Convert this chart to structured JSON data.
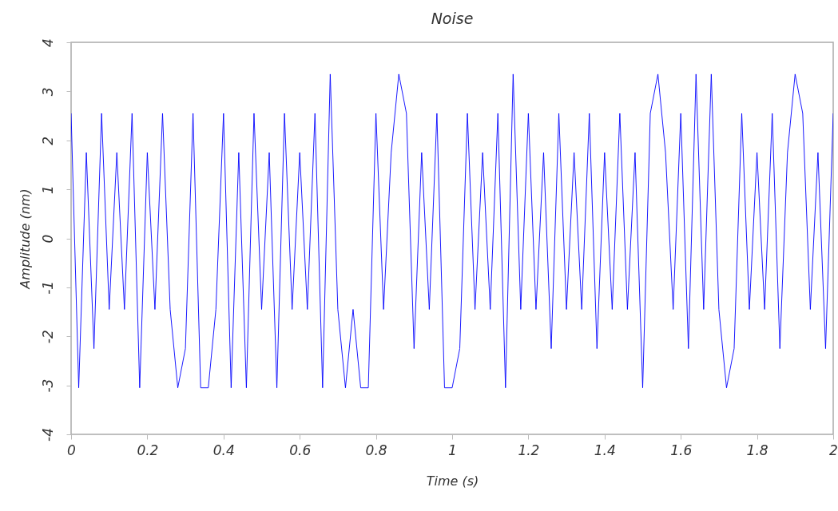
{
  "chart_data": {
    "type": "line",
    "title": "Noise",
    "xlabel": "Time (s)",
    "ylabel": "Amplitude (nm)",
    "x": [
      0,
      0.02,
      0.04,
      0.06,
      0.08,
      0.1,
      0.12,
      0.14,
      0.16,
      0.18,
      0.2,
      0.22,
      0.24,
      0.26,
      0.28,
      0.3,
      0.32,
      0.34,
      0.36,
      0.38,
      0.4,
      0.42,
      0.44,
      0.46,
      0.48,
      0.5,
      0.52,
      0.54,
      0.56,
      0.58,
      0.6,
      0.62,
      0.64,
      0.66,
      0.68,
      0.7,
      0.72,
      0.74,
      0.76,
      0.78,
      0.8,
      0.82,
      0.84,
      0.86,
      0.88,
      0.9,
      0.92,
      0.94,
      0.96,
      0.98,
      1,
      1.02,
      1.04,
      1.06,
      1.08,
      1.1,
      1.12,
      1.14,
      1.16,
      1.18,
      1.2,
      1.22,
      1.24,
      1.26,
      1.28,
      1.3,
      1.32,
      1.34,
      1.36,
      1.38,
      1.4,
      1.42,
      1.44,
      1.46,
      1.48,
      1.5,
      1.52,
      1.54,
      1.56,
      1.58,
      1.6,
      1.62,
      1.64,
      1.66,
      1.68,
      1.7,
      1.72,
      1.74,
      1.76,
      1.78,
      1.8,
      1.82,
      1.84,
      1.86,
      1.88,
      1.9,
      1.92,
      1.94,
      1.96,
      1.98,
      2
    ],
    "series": [
      {
        "color": "#0000ff",
        "values": [
          2.55,
          -3.05,
          1.75,
          -2.25,
          2.55,
          -1.45,
          1.75,
          -1.45,
          2.55,
          -3.05,
          1.75,
          -1.45,
          2.55,
          -1.45,
          -3.05,
          -2.25,
          2.55,
          -3.05,
          -3.05,
          -1.45,
          2.55,
          -3.05,
          1.75,
          -3.05,
          2.55,
          -1.45,
          1.75,
          -3.05,
          2.55,
          -1.45,
          1.75,
          -1.45,
          2.55,
          -3.05,
          3.35,
          -1.45,
          -3.05,
          -1.45,
          -3.05,
          -3.05,
          2.55,
          -1.45,
          1.75,
          3.35,
          2.55,
          -2.25,
          1.75,
          -1.45,
          2.55,
          -3.05,
          -3.05,
          -2.25,
          2.55,
          -1.45,
          1.75,
          -1.45,
          2.55,
          -3.05,
          3.35,
          -1.45,
          2.55,
          -1.45,
          1.75,
          -2.25,
          2.55,
          -1.45,
          1.75,
          -1.45,
          2.55,
          -2.25,
          1.75,
          -1.45,
          2.55,
          -1.45,
          1.75,
          -3.05,
          2.55,
          3.35,
          1.75,
          -1.45,
          2.55,
          -2.25,
          3.35,
          -1.45,
          3.35,
          -1.45,
          -3.05,
          -2.25,
          2.55,
          -1.45,
          1.75,
          -1.45,
          2.55,
          -2.25,
          1.75,
          3.35,
          2.55,
          -1.45,
          1.75,
          -2.25,
          2.55
        ]
      }
    ],
    "xlim": [
      0,
      2
    ],
    "xticks": [
      0,
      0.2,
      0.4,
      0.6,
      0.8,
      1,
      1.2,
      1.4,
      1.6,
      1.8,
      2
    ],
    "ylim": [
      -4,
      4
    ],
    "yticks": [
      -4,
      -3,
      -2,
      -1,
      0,
      1,
      2,
      3,
      4
    ],
    "grid": false,
    "marker": "none",
    "line_style": "solid"
  }
}
